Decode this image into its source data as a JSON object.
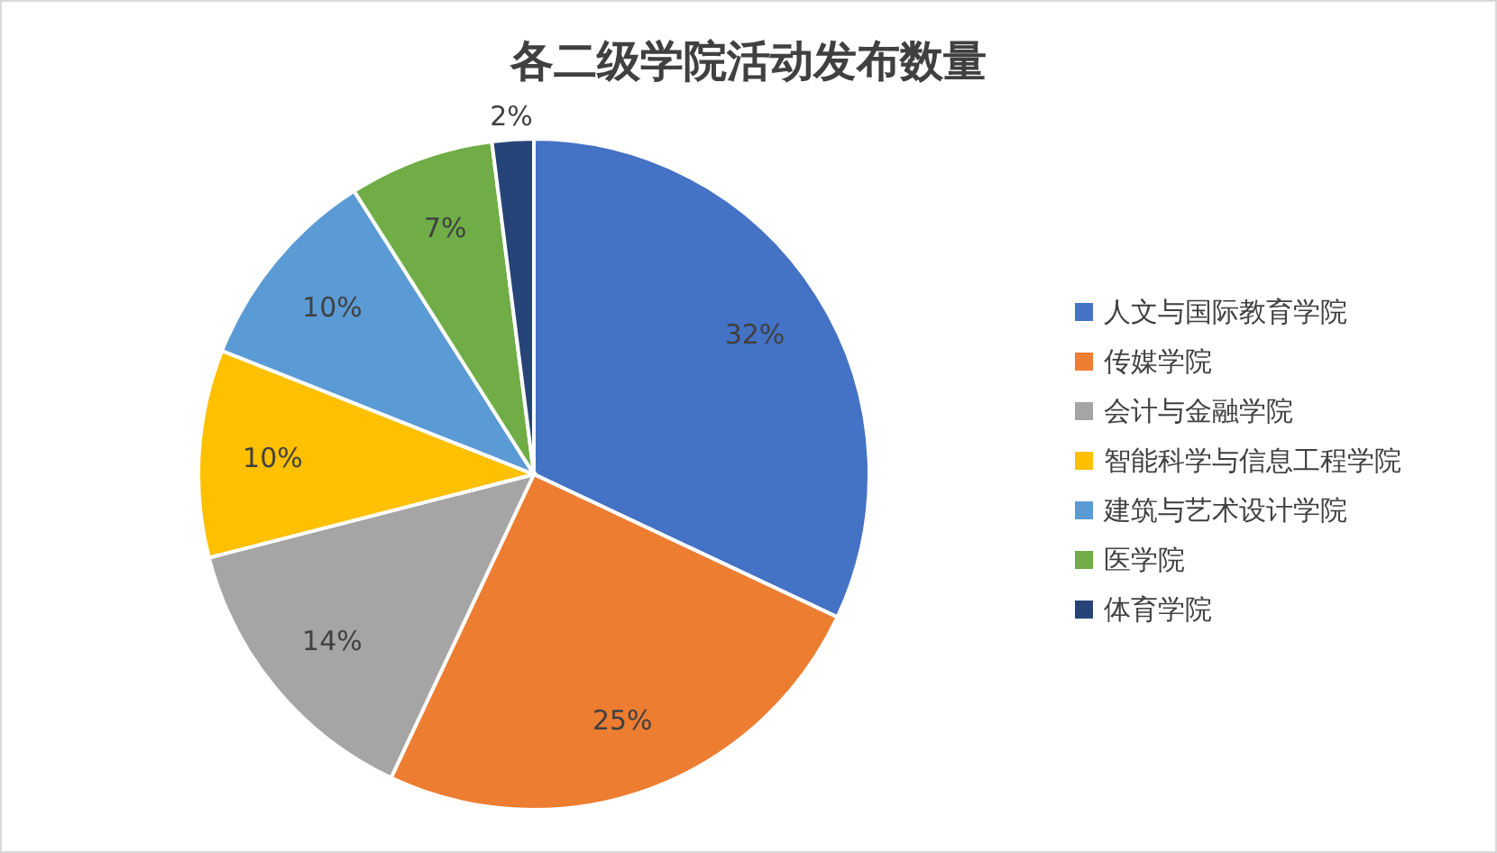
{
  "chart_data": {
    "type": "pie",
    "title": "各二级学院活动发布数量",
    "categories": [
      "人文与国际教育学院",
      "传媒学院",
      "会计与金融学院",
      "智能科学与信息工程学院",
      "建筑与艺术设计学院",
      "医学院",
      "体育学院"
    ],
    "values": [
      32,
      25,
      14,
      10,
      10,
      7,
      2
    ],
    "colors": [
      "#4472c4",
      "#ed7d31",
      "#a5a5a5",
      "#ffc000",
      "#5b9bd5",
      "#70ad47",
      "#264478"
    ],
    "value_labels": [
      "32%",
      "25%",
      "14%",
      "10%",
      "10%",
      "7%",
      "2%"
    ],
    "legend": "right"
  }
}
